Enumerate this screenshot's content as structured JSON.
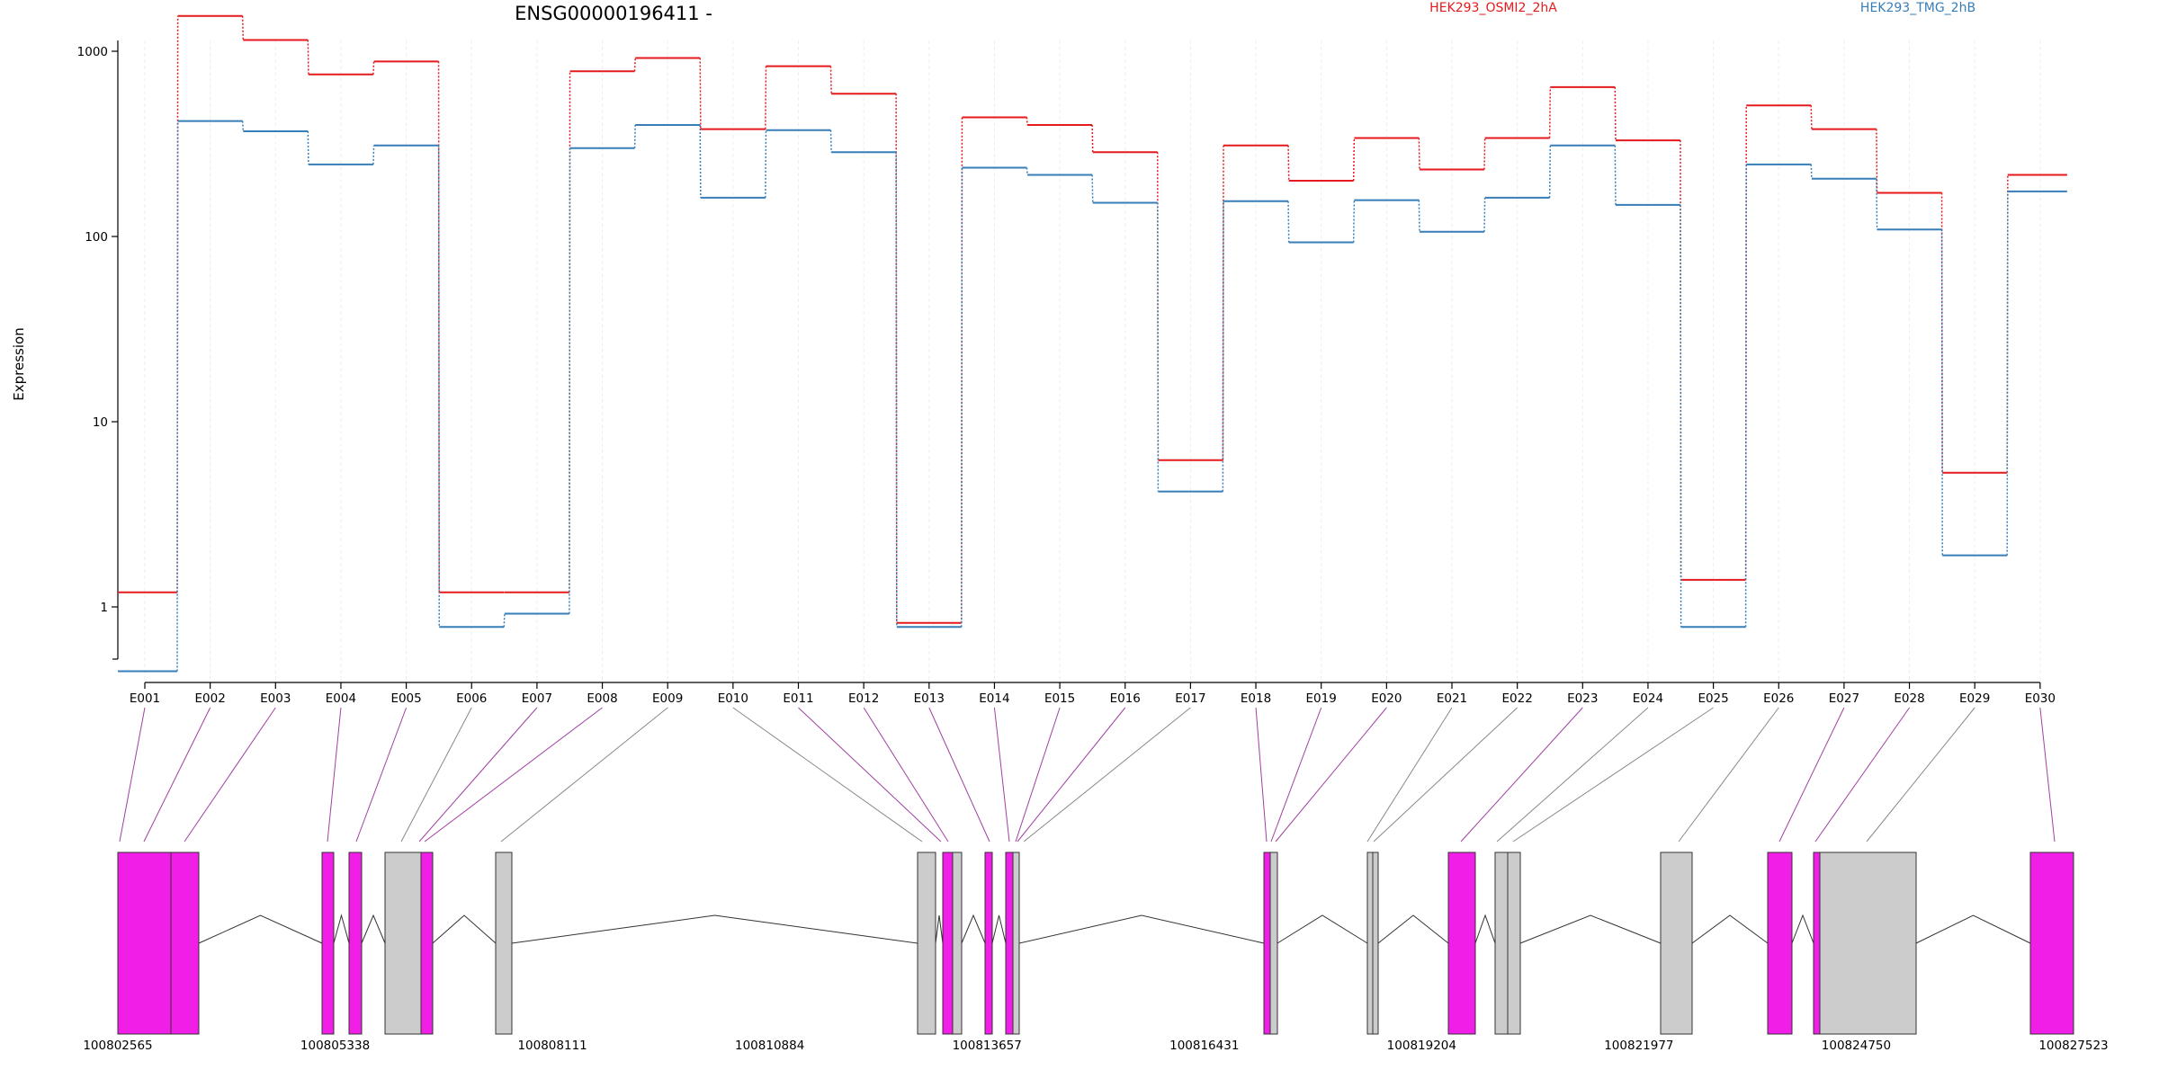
{
  "chart_data": {
    "type": "line",
    "title": "ENSG00000196411 -",
    "ylabel": "Expression",
    "yscale": "log",
    "ylim": [
      0.4,
      2200
    ],
    "yticks": [
      1,
      10,
      100,
      1000
    ],
    "ytick_labels": [
      "1",
      "10",
      "100",
      "1000"
    ],
    "categories": [
      "E001",
      "E002",
      "E003",
      "E004",
      "E005",
      "E006",
      "E007",
      "E008",
      "E009",
      "E010",
      "E011",
      "E012",
      "E013",
      "E014",
      "E015",
      "E016",
      "E017",
      "E018",
      "E019",
      "E020",
      "E021",
      "E022",
      "E023",
      "E024",
      "E025",
      "E026",
      "E027",
      "E028",
      "E029",
      "E030"
    ],
    "series": [
      {
        "name": "HEK293_OSMI2_2hA",
        "color": "#e41a1c",
        "values": [
          1.2,
          1550,
          1150,
          750,
          880,
          1.2,
          1.2,
          780,
          920,
          380,
          830,
          590,
          0.82,
          440,
          400,
          285,
          6.2,
          310,
          200,
          340,
          230,
          340,
          640,
          330,
          1.4,
          510,
          380,
          172,
          5.3,
          215
        ]
      },
      {
        "name": "HEK293_TMG_2hB",
        "color": "#377eb8",
        "values": [
          0.45,
          420,
          370,
          245,
          310,
          0.78,
          0.92,
          300,
          400,
          162,
          375,
          285,
          0.78,
          235,
          215,
          152,
          4.2,
          155,
          93,
          157,
          106,
          162,
          310,
          148,
          0.78,
          245,
          205,
          109,
          1.9,
          175
        ]
      }
    ],
    "legend_position": "top-right",
    "genomic_axis": {
      "ticks": [
        "100802565",
        "100805338",
        "100808111",
        "100810884",
        "100813657",
        "100816431",
        "100819204",
        "100821977",
        "100824750",
        "100827523"
      ]
    },
    "colors": {
      "exon_differential": "#f01ee6",
      "exon_normal": "#cccccc",
      "connector_differential": "#a040a0",
      "connector_normal": "#888888"
    }
  }
}
